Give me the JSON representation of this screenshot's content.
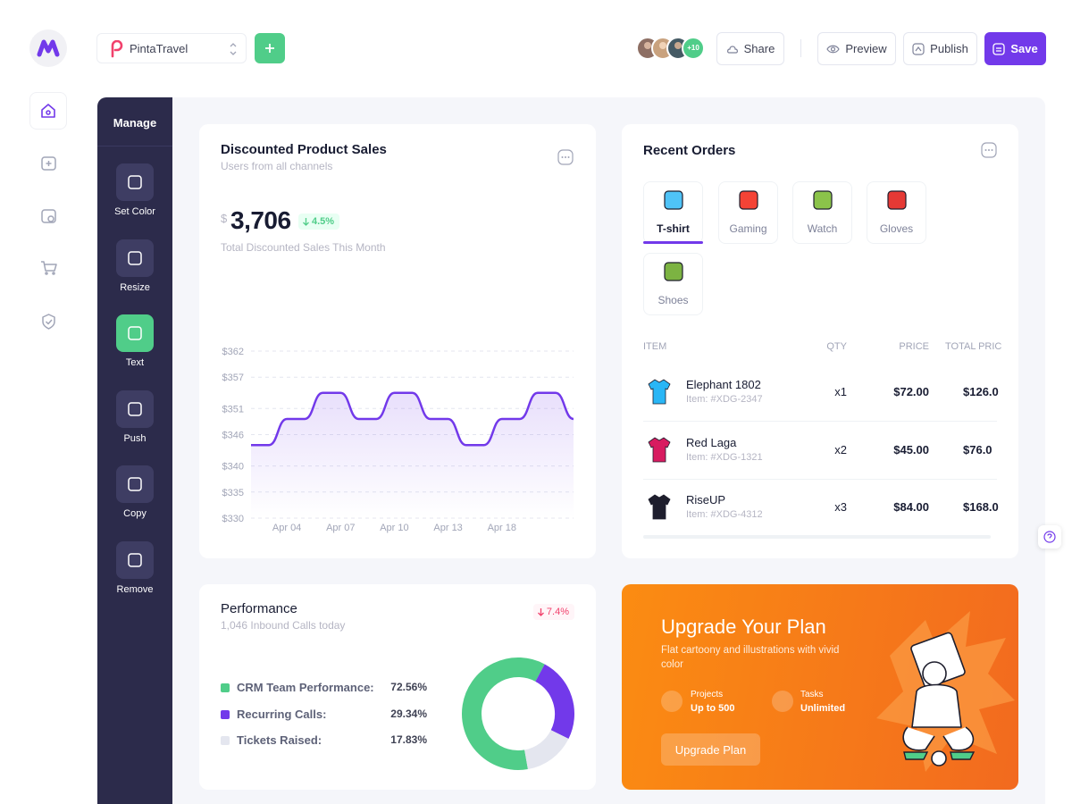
{
  "header": {
    "project": "PintaTravel",
    "avatars_more": "+10",
    "buttons": {
      "share": "Share",
      "preview": "Preview",
      "publish": "Publish",
      "save": "Save"
    }
  },
  "sidebar": {
    "title": "Manage",
    "tools": [
      "Set Color",
      "Resize",
      "Text",
      "Push",
      "Copy",
      "Remove"
    ]
  },
  "sales_card": {
    "title": "Discounted Product Sales",
    "subtitle": "Users from all channels",
    "currency": "$",
    "amount": "3,706",
    "change": "4.5%",
    "caption": "Total Discounted Sales This Month",
    "chart": {
      "type": "line",
      "categories": [
        null,
        null,
        "Apr 04",
        null,
        null,
        "Apr 07",
        null,
        null,
        "Apr 10",
        null,
        null,
        "Apr 13",
        null,
        null,
        "Apr 18",
        null,
        null,
        null,
        null
      ],
      "series": [
        {
          "color": "#7239ea",
          "values": [
            344,
            344,
            349,
            349,
            354,
            354,
            349,
            349,
            354,
            354,
            349,
            349,
            344,
            344,
            349,
            349,
            354,
            354,
            349
          ]
        }
      ],
      "ylim": [
        330,
        362
      ],
      "yticks": [
        {
          "value": 330,
          "label": "$330"
        },
        {
          "value": 335,
          "label": "$335"
        },
        {
          "value": 340,
          "label": "$340"
        },
        {
          "value": 346,
          "label": "$346"
        },
        {
          "value": 351,
          "label": "$351"
        },
        {
          "value": 357,
          "label": "$357"
        },
        {
          "value": 362,
          "label": "$362"
        }
      ],
      "grid": true
    }
  },
  "orders_card": {
    "title": "Recent Orders",
    "tabs": [
      "T-shirt",
      "Gaming",
      "Watch",
      "Gloves",
      "Shoes"
    ],
    "columns": [
      "ITEM",
      "QTY",
      "PRICE",
      "TOTAL PRIC"
    ],
    "rows": [
      {
        "name": "Elephant 1802",
        "sku": "Item: #XDG-2347",
        "qty": "x1",
        "price": "$72.00",
        "total": "$126.0"
      },
      {
        "name": "Red Laga",
        "sku": "Item: #XDG-1321",
        "qty": "x2",
        "price": "$45.00",
        "total": "$76.0"
      },
      {
        "name": "RiseUP",
        "sku": "Item: #XDG-4312",
        "qty": "x3",
        "price": "$84.00",
        "total": "$168.0"
      }
    ]
  },
  "performance_card": {
    "title": "Performance",
    "subtitle": "1,046 Inbound Calls today",
    "change": "7.4%",
    "chart": {
      "type": "donut",
      "categories": [
        "CRM Team Performance:",
        "Recurring Calls:",
        "Tickets Raised:"
      ],
      "values": [
        72.56,
        29.34,
        17.83
      ],
      "value_labels": [
        "72.56%",
        "29.34%",
        "17.83%"
      ],
      "colors": [
        "#50cd89",
        "#7239ea",
        "#e4e6ef"
      ]
    }
  },
  "upgrade_card": {
    "title": "Upgrade Your Plan",
    "text": "Flat cartoony and illustrations with vivid color",
    "features": [
      {
        "label": "Projects",
        "value": "Up to 500"
      },
      {
        "label": "Tasks",
        "value": "Unlimited"
      }
    ],
    "button": "Upgrade Plan"
  }
}
